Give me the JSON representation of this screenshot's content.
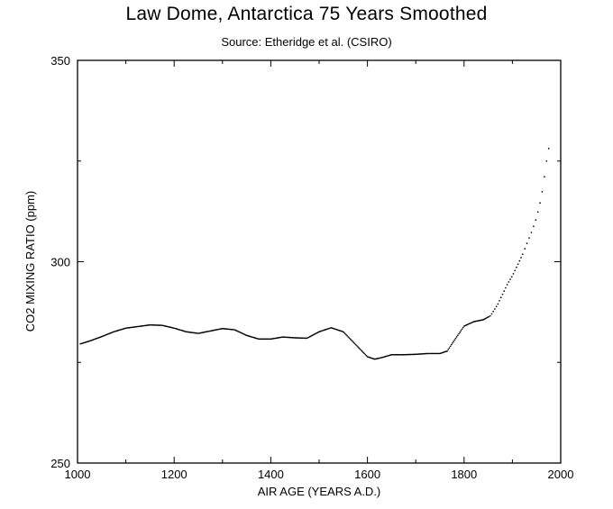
{
  "chart_data": {
    "type": "scatter",
    "title": "Law Dome, Antarctica 75 Years Smoothed",
    "subtitle": "Source: Etheridge et al. (CSIRO)",
    "xlabel": "AIR AGE  (YEARS A.D.)",
    "ylabel": "CO2 MIXING RATIO  (ppm)",
    "xlim": [
      1000,
      2000
    ],
    "ylim": [
      250,
      350
    ],
    "xticks": [
      1000,
      1200,
      1400,
      1600,
      1800,
      2000
    ],
    "xtick_labels": [
      "1000",
      "1200",
      "1400",
      "1600",
      "1800",
      "2000"
    ],
    "yticks": [
      250,
      300,
      350
    ],
    "ytick_labels": [
      "250",
      "300",
      "350"
    ],
    "grid": false,
    "legend": "none",
    "marker_color": "#000000",
    "series": [
      {
        "x": [
          1006,
          1025,
          1050,
          1075,
          1100,
          1125,
          1150,
          1175,
          1200,
          1225,
          1250,
          1275,
          1300,
          1325,
          1350,
          1375,
          1400,
          1425,
          1450,
          1475,
          1500,
          1525,
          1550,
          1575,
          1600,
          1615,
          1630,
          1650,
          1675,
          1700,
          1725,
          1750,
          1765,
          1780,
          1800,
          1820,
          1840,
          1855,
          1870,
          1880,
          1890,
          1900,
          1910,
          1920,
          1930,
          1940,
          1950,
          1955,
          1960,
          1965,
          1970,
          1975,
          1978
        ],
        "y": [
          279.6,
          280.3,
          281.4,
          282.6,
          283.5,
          283.9,
          284.3,
          284.2,
          283.5,
          282.6,
          282.2,
          282.8,
          283.4,
          283.1,
          281.7,
          280.8,
          280.8,
          281.3,
          281.1,
          281.0,
          282.6,
          283.6,
          282.6,
          279.5,
          276.4,
          275.8,
          276.2,
          276.9,
          276.9,
          277.0,
          277.2,
          277.2,
          277.8,
          280.5,
          284.0,
          285.1,
          285.6,
          286.6,
          289.5,
          292.0,
          294.5,
          296.5,
          299.0,
          301.5,
          304.5,
          307.5,
          311.0,
          313.5,
          316.0,
          320.0,
          324.5,
          328.0,
          329.5
        ]
      }
    ]
  }
}
